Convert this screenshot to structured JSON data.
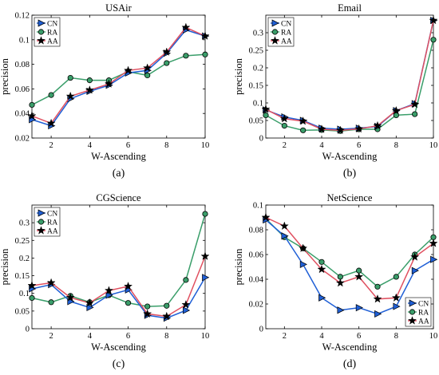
{
  "figure": {
    "xlabel": "W-Ascending",
    "ylabel": "precision"
  },
  "legend_labels": [
    "CN",
    "RA",
    "AA"
  ],
  "series_colors": {
    "CN": "#1f5fd6",
    "RA": "#3a9e6a",
    "AA": "#e05060"
  },
  "marker_shapes": {
    "CN": "triangle-right",
    "RA": "circle",
    "AA": "star"
  },
  "chart_data": [
    {
      "type": "line",
      "title": "USAir",
      "caption": "(a)",
      "xlabel": "W-Ascending",
      "ylabel": "precision",
      "x": [
        1,
        2,
        3,
        4,
        5,
        6,
        7,
        8,
        9,
        10
      ],
      "xlim": [
        1,
        10
      ],
      "ylim": [
        0.02,
        0.12
      ],
      "xticks": [
        2,
        4,
        6,
        8,
        10
      ],
      "yticks": [
        0.02,
        0.04,
        0.06,
        0.08,
        0.1,
        0.12
      ],
      "ytick_labels": [
        "0.02",
        "0.04",
        "0.06",
        "0.08",
        "0.1",
        "0.12"
      ],
      "legend_position": "top-left",
      "series": [
        {
          "name": "CN",
          "values": [
            0.035,
            0.03,
            0.052,
            0.058,
            0.063,
            0.073,
            0.075,
            0.089,
            0.108,
            0.103
          ]
        },
        {
          "name": "RA",
          "values": [
            0.047,
            0.055,
            0.069,
            0.067,
            0.067,
            0.074,
            0.071,
            0.081,
            0.087,
            0.088
          ]
        },
        {
          "name": "AA",
          "values": [
            0.038,
            0.032,
            0.054,
            0.059,
            0.064,
            0.075,
            0.077,
            0.09,
            0.11,
            0.103
          ]
        }
      ]
    },
    {
      "type": "line",
      "title": "Email",
      "caption": "(b)",
      "xlabel": "W-Ascending",
      "ylabel": "precision",
      "x": [
        1,
        2,
        3,
        4,
        5,
        6,
        7,
        8,
        9,
        10
      ],
      "xlim": [
        1,
        10
      ],
      "ylim": [
        0,
        0.35
      ],
      "xticks": [
        2,
        4,
        6,
        8,
        10
      ],
      "yticks": [
        0,
        0.05,
        0.1,
        0.15,
        0.2,
        0.25,
        0.3
      ],
      "ytick_labels": [
        "0",
        "0.05",
        "0.1",
        "0.15",
        "0.2",
        "0.25",
        "0.3"
      ],
      "legend_position": "top-left",
      "series": [
        {
          "name": "CN",
          "values": [
            0.08,
            0.06,
            0.05,
            0.028,
            0.025,
            0.028,
            0.033,
            0.078,
            0.098,
            0.335
          ]
        },
        {
          "name": "RA",
          "values": [
            0.065,
            0.035,
            0.022,
            0.023,
            0.02,
            0.025,
            0.025,
            0.065,
            0.068,
            0.28
          ]
        },
        {
          "name": "AA",
          "values": [
            0.082,
            0.055,
            0.048,
            0.025,
            0.022,
            0.026,
            0.035,
            0.078,
            0.096,
            0.335
          ]
        }
      ]
    },
    {
      "type": "line",
      "title": "CGScience",
      "caption": "(c)",
      "xlabel": "W-Ascending",
      "ylabel": "precision",
      "x": [
        1,
        2,
        3,
        4,
        5,
        6,
        7,
        8,
        9,
        10
      ],
      "xlim": [
        1,
        10
      ],
      "ylim": [
        0,
        0.35
      ],
      "xticks": [
        2,
        4,
        6,
        8,
        10
      ],
      "yticks": [
        0,
        0.05,
        0.1,
        0.15,
        0.2,
        0.25,
        0.3
      ],
      "ytick_labels": [
        "0",
        "0.05",
        "0.1",
        "0.15",
        "0.2",
        "0.25",
        "0.3"
      ],
      "legend_position": "top-left",
      "series": [
        {
          "name": "CN",
          "values": [
            0.113,
            0.125,
            0.077,
            0.06,
            0.095,
            0.11,
            0.038,
            0.03,
            0.052,
            0.145
          ]
        },
        {
          "name": "RA",
          "values": [
            0.087,
            0.075,
            0.093,
            0.075,
            0.095,
            0.073,
            0.063,
            0.065,
            0.138,
            0.325
          ]
        },
        {
          "name": "AA",
          "values": [
            0.122,
            0.13,
            0.088,
            0.073,
            0.108,
            0.12,
            0.042,
            0.035,
            0.068,
            0.205
          ]
        }
      ]
    },
    {
      "type": "line",
      "title": "NetScience",
      "caption": "(d)",
      "xlabel": "W-Ascending",
      "ylabel": "precision",
      "x": [
        1,
        2,
        3,
        4,
        5,
        6,
        7,
        8,
        9,
        10
      ],
      "xlim": [
        1,
        10
      ],
      "ylim": [
        0,
        0.1
      ],
      "xticks": [
        2,
        4,
        6,
        8,
        10
      ],
      "yticks": [
        0,
        0.02,
        0.04,
        0.06,
        0.08,
        0.1
      ],
      "ytick_labels": [
        "0",
        "0.02",
        "0.04",
        "0.06",
        "0.08",
        "0.1"
      ],
      "legend_position": "bottom-right",
      "series": [
        {
          "name": "CN",
          "values": [
            0.088,
            0.075,
            0.052,
            0.025,
            0.015,
            0.017,
            0.012,
            0.018,
            0.047,
            0.056
          ]
        },
        {
          "name": "RA",
          "values": [
            0.089,
            0.074,
            0.065,
            0.054,
            0.042,
            0.047,
            0.034,
            0.042,
            0.06,
            0.074
          ]
        },
        {
          "name": "AA",
          "values": [
            0.09,
            0.083,
            0.065,
            0.048,
            0.037,
            0.042,
            0.024,
            0.025,
            0.058,
            0.069
          ]
        }
      ]
    }
  ]
}
